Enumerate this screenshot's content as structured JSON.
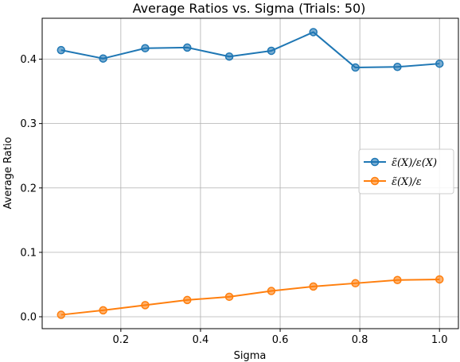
{
  "chart_data": {
    "type": "line",
    "title": "Average Ratios vs. Sigma (Trials: 50)",
    "xlabel": "Sigma",
    "ylabel": "Average Ratio",
    "x": [
      0.05,
      0.1556,
      0.2611,
      0.3667,
      0.4722,
      0.5778,
      0.6833,
      0.7889,
      0.8944,
      1.0
    ],
    "xlim": [
      0.0025,
      1.0475
    ],
    "ylim": [
      -0.0185,
      0.4635
    ],
    "xticks": [
      0.2,
      0.4,
      0.6,
      0.8,
      1.0
    ],
    "xtick_labels": [
      "0.2",
      "0.4",
      "0.6",
      "0.8",
      "1.0"
    ],
    "yticks": [
      0.0,
      0.1,
      0.2,
      0.3,
      0.4
    ],
    "ytick_labels": [
      "0.0",
      "0.1",
      "0.2",
      "0.3",
      "0.4"
    ],
    "grid": true,
    "legend_position": "center-right",
    "series": [
      {
        "name": "ε̃(X)/ε(X)",
        "color": "#1f77b4",
        "marker": "circle",
        "values": [
          0.414,
          0.401,
          0.417,
          0.418,
          0.404,
          0.413,
          0.442,
          0.387,
          0.388,
          0.393
        ]
      },
      {
        "name": "ε̃(X)/ε",
        "color": "#ff7f0e",
        "marker": "circle",
        "values": [
          0.003,
          0.01,
          0.018,
          0.026,
          0.031,
          0.04,
          0.047,
          0.052,
          0.057,
          0.058
        ]
      }
    ]
  }
}
